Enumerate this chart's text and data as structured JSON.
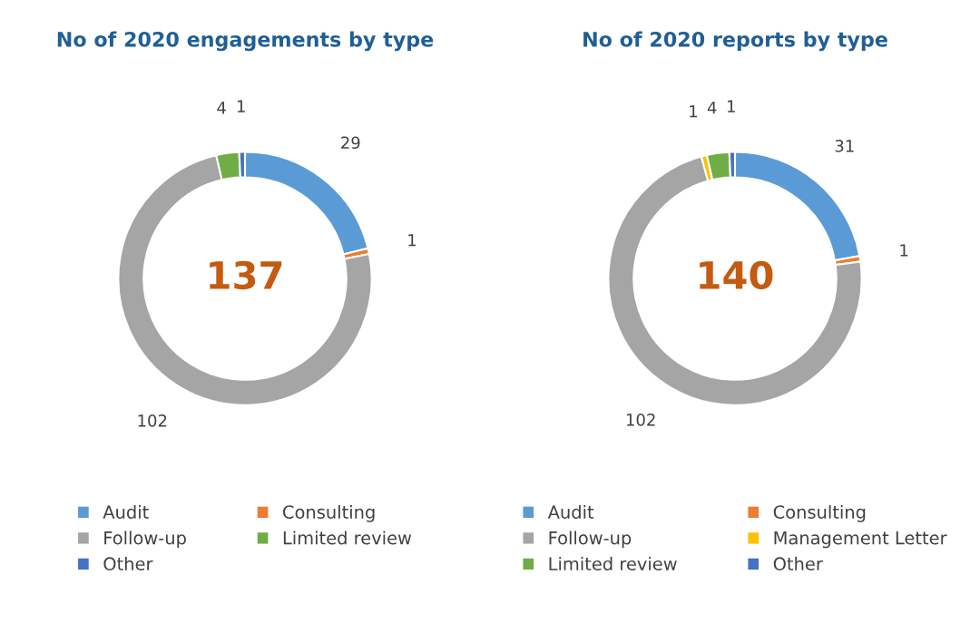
{
  "chart_data": [
    {
      "type": "donut",
      "title": "No of 2020 engagements by type",
      "categories": [
        "Audit",
        "Consulting",
        "Follow-up",
        "Limited review",
        "Other"
      ],
      "values": [
        29,
        1,
        102,
        4,
        1
      ],
      "colors": [
        "#5b9bd5",
        "#ed7d31",
        "#a5a5a5",
        "#70ad47",
        "#4472c4"
      ],
      "data_labels": true,
      "legend": "bottom",
      "annotations": [
        "137"
      ]
    },
    {
      "type": "donut",
      "title": "No of 2020 reports by type",
      "categories": [
        "Audit",
        "Consulting",
        "Follow-up",
        "Management Letter",
        "Limited review",
        "Other"
      ],
      "values": [
        31,
        1,
        102,
        1,
        4,
        1
      ],
      "colors": [
        "#5b9bd5",
        "#ed7d31",
        "#a5a5a5",
        "#ffc000",
        "#70ad47",
        "#4472c4"
      ],
      "data_labels": true,
      "legend": "bottom",
      "annotations": [
        "140"
      ]
    }
  ]
}
